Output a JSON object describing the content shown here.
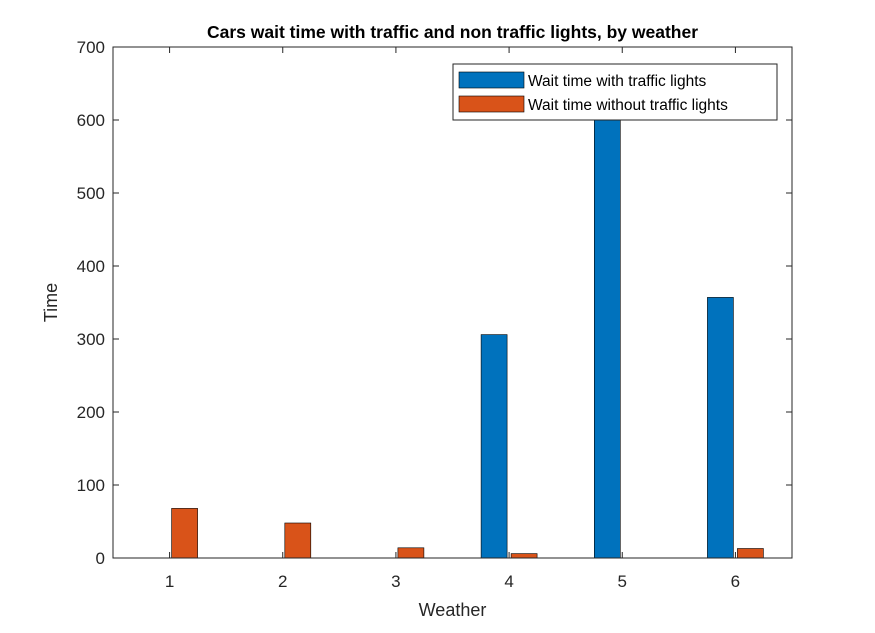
{
  "chart_data": {
    "type": "bar",
    "title": "Cars wait time with traffic and non traffic lights, by weather",
    "xlabel": "Weather",
    "ylabel": "Time",
    "categories": [
      "1",
      "2",
      "3",
      "4",
      "5",
      "6"
    ],
    "ylim": [
      0,
      700
    ],
    "yticks": [
      0,
      100,
      200,
      300,
      400,
      500,
      600,
      700
    ],
    "grid": false,
    "legend_position": "top-right",
    "series": [
      {
        "name": "Wait time with traffic lights",
        "color": "#0072BD",
        "values": [
          0,
          0,
          0,
          306,
          600,
          357
        ]
      },
      {
        "name": "Wait time without traffic lights",
        "color": "#D95319",
        "values": [
          68,
          48,
          14,
          6,
          0,
          13
        ]
      }
    ]
  }
}
